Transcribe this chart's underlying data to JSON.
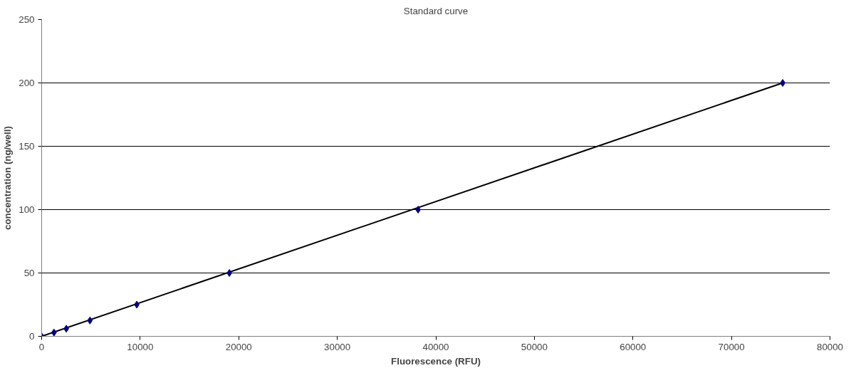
{
  "chart_data": {
    "type": "scatter",
    "title": "Standard curve",
    "xlabel": "Fluorescence (RFU)",
    "ylabel": "concentration (ng/well)",
    "xlim": [
      0,
      80000
    ],
    "xticks": [
      0,
      10000,
      20000,
      30000,
      40000,
      50000,
      60000,
      70000,
      80000
    ],
    "ylim": [
      0,
      250
    ],
    "yticks": [
      0,
      50,
      100,
      150,
      200,
      250
    ],
    "grid": "y",
    "series": [
      {
        "color": "#000080",
        "marker": "diamond",
        "x": [
          0,
          1250,
          2500,
          4900,
          9650,
          19050,
          38200,
          75200
        ],
        "values": [
          0,
          3,
          6,
          12.5,
          25,
          50,
          100,
          200
        ]
      },
      {
        "type": "line",
        "color": "#000000",
        "x": [
          0,
          75200
        ],
        "values": [
          0,
          200
        ]
      }
    ]
  }
}
